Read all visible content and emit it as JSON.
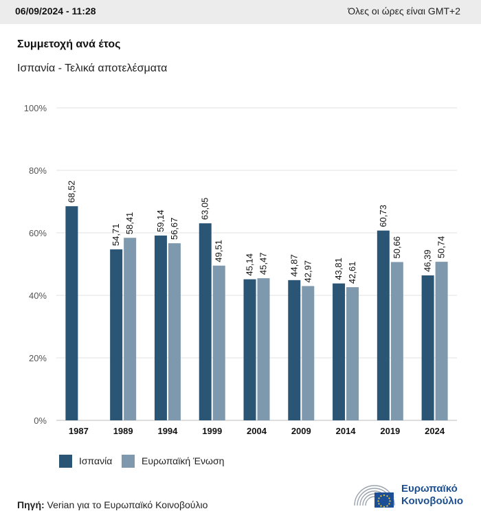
{
  "header": {
    "date": "06/09/2024 - 11:28",
    "timezone_note": "Όλες οι ώρες είναι GMT+2"
  },
  "title": "Συμμετοχή ανά έτος",
  "subtitle": "Ισπανία - Τελικά αποτελέσματα",
  "colors": {
    "spain": "#2a5575",
    "eu": "#7e98ad",
    "grid": "#e2e2e2",
    "axis": "#bdbdbd"
  },
  "chart_data": {
    "type": "bar",
    "categories": [
      "1987",
      "1989",
      "1994",
      "1999",
      "2004",
      "2009",
      "2014",
      "2019",
      "2024"
    ],
    "series": [
      {
        "name": "Ισπανία",
        "values": [
          68.52,
          54.71,
          59.14,
          63.05,
          45.14,
          44.87,
          43.81,
          60.73,
          46.39
        ],
        "labels": [
          "68,52",
          "54,71",
          "59,14",
          "63,05",
          "45,14",
          "44,87",
          "43,81",
          "60,73",
          "46,39"
        ]
      },
      {
        "name": "Ευρωπαϊκή Ένωση",
        "values": [
          null,
          58.41,
          56.67,
          49.51,
          45.47,
          42.97,
          42.61,
          50.66,
          50.74
        ],
        "labels": [
          null,
          "58,41",
          "56,67",
          "49,51",
          "45,47",
          "42,97",
          "42,61",
          "50,66",
          "50,74"
        ]
      }
    ],
    "ylim": [
      0,
      100
    ],
    "yticks": [
      "0%",
      "20%",
      "40%",
      "60%",
      "80%",
      "100%"
    ],
    "grid": true,
    "legend_position": "bottom-left"
  },
  "legend": [
    {
      "label": "Ισπανία"
    },
    {
      "label": "Ευρωπαϊκή Ένωση"
    }
  ],
  "source": {
    "key": "Πηγή:",
    "text": " Verian για το Ευρωπαϊκό Κοινοβούλιο"
  },
  "logo": {
    "line1": "Ευρωπαϊκό",
    "line2": "Κοινοβούλιο"
  }
}
